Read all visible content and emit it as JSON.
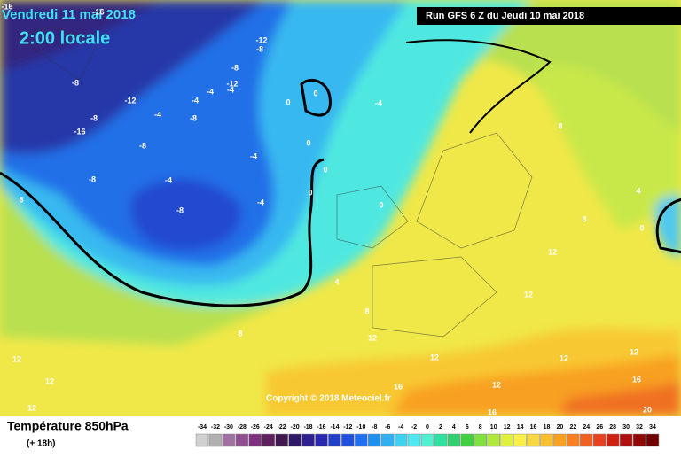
{
  "header": {
    "date": "Vendredi 11 mai 2018",
    "time": "2:00 locale",
    "run": "Run GFS 6 Z du Jeudi 10 mai 2018"
  },
  "copyright": "Copyright © 2018 Meteociel.fr",
  "legend": {
    "title": "Température 850hPa",
    "subtitle": "(+ 18h)",
    "scale": [
      -34,
      -32,
      -30,
      -28,
      -26,
      -24,
      -22,
      -20,
      -18,
      -16,
      -14,
      -12,
      -10,
      -8,
      -6,
      -4,
      -2,
      0,
      2,
      4,
      6,
      8,
      10,
      12,
      14,
      16,
      18,
      20,
      22,
      24,
      26,
      28,
      30,
      32,
      34
    ],
    "colors": [
      "#d0d0d0",
      "#b0b0b0",
      "#a070a0",
      "#905090",
      "#803080",
      "#602060",
      "#401850",
      "#301868",
      "#302090",
      "#2828b0",
      "#2040c8",
      "#2050e0",
      "#2070f0",
      "#2090f0",
      "#30b0f0",
      "#40d0f0",
      "#50e8f0",
      "#50f0d0",
      "#30e0a0",
      "#30d070",
      "#40d040",
      "#80e040",
      "#b0e840",
      "#e0f040",
      "#f8f048",
      "#f8d840",
      "#f8c030",
      "#f8a020",
      "#f88020",
      "#f06020",
      "#e84020",
      "#d02010",
      "#b01010",
      "#900808",
      "#700000"
    ]
  },
  "contour_labels": [
    -16,
    -16,
    -12,
    -8,
    -8,
    -12,
    -8,
    -12,
    -4,
    -4,
    -4,
    -8,
    -4,
    -8,
    0,
    0,
    -4,
    -16,
    -8,
    -4,
    -8,
    -4,
    0,
    0,
    0,
    -8,
    -4,
    0,
    8,
    8,
    4,
    0,
    8,
    12,
    12,
    4,
    8,
    8,
    12,
    12,
    12,
    12,
    12,
    12,
    12,
    16,
    16,
    16,
    20,
    12
  ]
}
